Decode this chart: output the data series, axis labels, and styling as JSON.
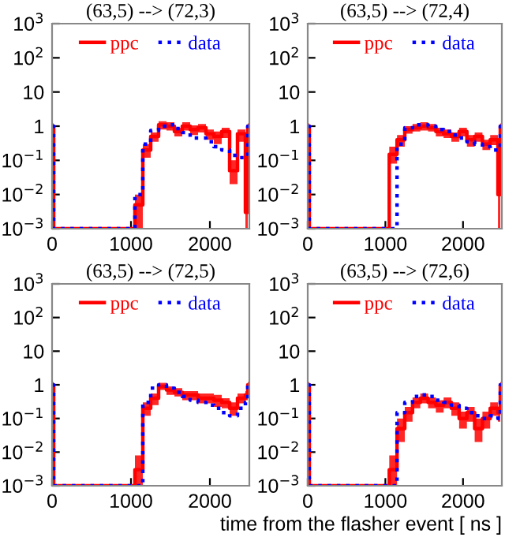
{
  "chart_data": [
    {
      "type": "step",
      "title": "(63,5) --> (72,3)",
      "log": "y",
      "legend": "top",
      "xlim": [
        0,
        2500
      ],
      "ylim": [
        0.001,
        1000
      ],
      "xticks": [
        0,
        1000,
        2000
      ],
      "yticks": [
        {
          "value": 1000,
          "label": "10$^{3}$"
        },
        {
          "value": 100,
          "label": "10$^{2}$"
        },
        10,
        1,
        {
          "value": 0.1,
          "label": "10$^{−1}$"
        },
        {
          "value": 0.01,
          "label": "10$^{−2}$"
        },
        {
          "value": 0.001,
          "label": "10$^{−3}$"
        }
      ],
      "x": [
        0,
        20,
        1050,
        1150,
        1250,
        1350,
        1450,
        1550,
        1650,
        1750,
        1850,
        1950,
        2050,
        2150,
        2250,
        2350,
        2450,
        2480,
        2500
      ],
      "series": [
        {
          "name": "ppc",
          "color": "#ff0000",
          "line_style": "solid",
          "values": [
            1,
            0.001,
            0.005,
            0.2,
            0.5,
            1.1,
            1.0,
            0.7,
            1.0,
            0.8,
            0.9,
            0.6,
            0.5,
            0.7,
            0.05,
            0.6,
            0.003,
            1,
            1
          ],
          "lower": [
            0.8,
            0.001,
            0.001,
            0.12,
            0.35,
            0.8,
            0.75,
            0.5,
            0.75,
            0.55,
            0.65,
            0.4,
            0.3,
            0.45,
            0.02,
            0.35,
            0.001,
            0.8,
            0.8
          ],
          "upper": [
            1.2,
            0.001,
            0.01,
            0.3,
            0.65,
            1.4,
            1.3,
            0.9,
            1.3,
            1.05,
            1.15,
            0.8,
            0.7,
            0.9,
            0.1,
            0.8,
            0.01,
            1.2,
            1.2
          ]
        },
        {
          "name": "data",
          "color": "#0000ff",
          "line_style": "dotted",
          "values": [
            1,
            0.001,
            0.01,
            0.3,
            0.75,
            1.0,
            1.1,
            0.85,
            0.65,
            0.45,
            0.45,
            0.35,
            0.25,
            0.2,
            0.14,
            0.12,
            0.12,
            1,
            1
          ]
        }
      ]
    },
    {
      "type": "step",
      "title": "(63,5) --> (72,4)",
      "log": "y",
      "legend": "top",
      "xlim": [
        0,
        2500
      ],
      "ylim": [
        0.001,
        1000
      ],
      "xticks": [
        0,
        1000,
        2000
      ],
      "yticks": [
        {
          "value": 1000,
          "label": "10$^{3}$"
        },
        {
          "value": 100,
          "label": "10$^{2}$"
        },
        10,
        1,
        {
          "value": 0.1,
          "label": "10$^{−1}$"
        },
        {
          "value": 0.01,
          "label": "10$^{−2}$"
        },
        {
          "value": 0.001,
          "label": "10$^{−3}$"
        }
      ],
      "x": [
        0,
        20,
        1050,
        1150,
        1250,
        1350,
        1450,
        1550,
        1650,
        1750,
        1850,
        1950,
        2050,
        2150,
        2250,
        2350,
        2450,
        2480,
        2500
      ],
      "series": [
        {
          "name": "ppc",
          "color": "#ff0000",
          "line_style": "solid",
          "values": [
            1,
            0.001,
            0.15,
            0.4,
            0.8,
            0.9,
            1.0,
            0.9,
            0.7,
            0.6,
            0.5,
            0.7,
            0.4,
            0.5,
            0.3,
            0.4,
            0.01,
            1,
            1
          ],
          "lower": [
            0.8,
            0.001,
            0.08,
            0.25,
            0.6,
            0.7,
            0.75,
            0.7,
            0.5,
            0.45,
            0.35,
            0.5,
            0.25,
            0.35,
            0.2,
            0.28,
            0.001,
            0.8,
            0.8
          ],
          "upper": [
            1.2,
            0.001,
            0.25,
            0.55,
            1.0,
            1.15,
            1.3,
            1.15,
            0.9,
            0.8,
            0.65,
            0.9,
            0.55,
            0.65,
            0.4,
            0.55,
            0.05,
            1.2,
            1.2
          ]
        },
        {
          "name": "data",
          "color": "#0000ff",
          "line_style": "dotted",
          "values": [
            1,
            0.001,
            0.001,
            0.3,
            0.9,
            1.1,
            1.1,
            1.0,
            0.8,
            0.7,
            0.55,
            0.45,
            0.35,
            0.3,
            0.25,
            0.2,
            0.2,
            1,
            1
          ]
        }
      ]
    },
    {
      "type": "step",
      "title": "(63,5) --> (72,5)",
      "log": "y",
      "legend": "top",
      "xlim": [
        0,
        2500
      ],
      "ylim": [
        0.001,
        1000
      ],
      "xticks": [
        0,
        1000,
        2000
      ],
      "yticks": [
        {
          "value": 1000,
          "label": "10$^{3}$"
        },
        {
          "value": 100,
          "label": "10$^{2}$"
        },
        10,
        1,
        {
          "value": 0.1,
          "label": "10$^{−1}$"
        },
        {
          "value": 0.01,
          "label": "10$^{−2}$"
        },
        {
          "value": 0.001,
          "label": "10$^{−3}$"
        }
      ],
      "x": [
        0,
        20,
        1050,
        1150,
        1250,
        1350,
        1450,
        1550,
        1650,
        1750,
        1850,
        1950,
        2050,
        2150,
        2250,
        2350,
        2450,
        2480,
        2500
      ],
      "series": [
        {
          "name": "ppc",
          "color": "#ff0000",
          "line_style": "solid",
          "values": [
            1,
            0.001,
            0.003,
            0.2,
            0.4,
            0.9,
            0.7,
            0.6,
            0.5,
            0.5,
            0.4,
            0.4,
            0.35,
            0.3,
            0.2,
            0.4,
            0.5,
            1,
            1
          ],
          "lower": [
            0.8,
            0.001,
            0.001,
            0.12,
            0.25,
            0.7,
            0.5,
            0.45,
            0.35,
            0.35,
            0.28,
            0.28,
            0.22,
            0.2,
            0.12,
            0.28,
            0.35,
            0.8,
            0.8
          ],
          "upper": [
            1.2,
            0.001,
            0.008,
            0.3,
            0.55,
            1.15,
            0.9,
            0.8,
            0.65,
            0.65,
            0.55,
            0.55,
            0.5,
            0.4,
            0.3,
            0.55,
            0.65,
            1.2,
            1.2
          ]
        },
        {
          "name": "data",
          "color": "#0000ff",
          "line_style": "dotted",
          "values": [
            1,
            0.001,
            0.001,
            0.3,
            0.8,
            1.0,
            0.8,
            0.6,
            0.45,
            0.35,
            0.3,
            0.25,
            0.2,
            0.15,
            0.12,
            0.2,
            0.3,
            1,
            1
          ]
        }
      ]
    },
    {
      "type": "step",
      "title": "(63,5) --> (72,6)",
      "xlabel": "time from the flasher event [ ns ]",
      "log": "y",
      "legend": "top",
      "xlim": [
        0,
        2500
      ],
      "ylim": [
        0.001,
        1000
      ],
      "xticks": [
        0,
        1000,
        2000
      ],
      "yticks": [
        {
          "value": 1000,
          "label": "10$^{3}$"
        },
        {
          "value": 100,
          "label": "10$^{2}$"
        },
        10,
        1,
        {
          "value": 0.1,
          "label": "10$^{−1}$"
        },
        {
          "value": 0.01,
          "label": "10$^{−2}$"
        },
        {
          "value": 0.001,
          "label": "10$^{−3}$"
        }
      ],
      "x": [
        0,
        20,
        1050,
        1150,
        1250,
        1350,
        1450,
        1550,
        1650,
        1750,
        1850,
        1950,
        2050,
        2150,
        2250,
        2350,
        2450,
        2480,
        2500
      ],
      "series": [
        {
          "name": "ppc",
          "color": "#ff0000",
          "line_style": "solid",
          "values": [
            1,
            0.001,
            0.003,
            0.05,
            0.15,
            0.3,
            0.4,
            0.3,
            0.25,
            0.3,
            0.2,
            0.1,
            0.15,
            0.05,
            0.1,
            0.2,
            0.15,
            1,
            1
          ],
          "lower": [
            0.8,
            0.001,
            0.001,
            0.02,
            0.08,
            0.2,
            0.28,
            0.2,
            0.15,
            0.2,
            0.12,
            0.05,
            0.08,
            0.02,
            0.05,
            0.12,
            0.08,
            0.8,
            0.8
          ],
          "upper": [
            1.2,
            0.001,
            0.008,
            0.1,
            0.22,
            0.42,
            0.55,
            0.42,
            0.35,
            0.42,
            0.3,
            0.16,
            0.22,
            0.1,
            0.16,
            0.3,
            0.22,
            1.2,
            1.2
          ]
        },
        {
          "name": "data",
          "color": "#0000ff",
          "line_style": "dotted",
          "values": [
            1,
            0.001,
            0.001,
            0.15,
            0.3,
            0.45,
            0.5,
            0.45,
            0.35,
            0.3,
            0.25,
            0.2,
            0.15,
            0.12,
            0.1,
            0.12,
            0.1,
            1,
            1
          ]
        }
      ]
    }
  ]
}
